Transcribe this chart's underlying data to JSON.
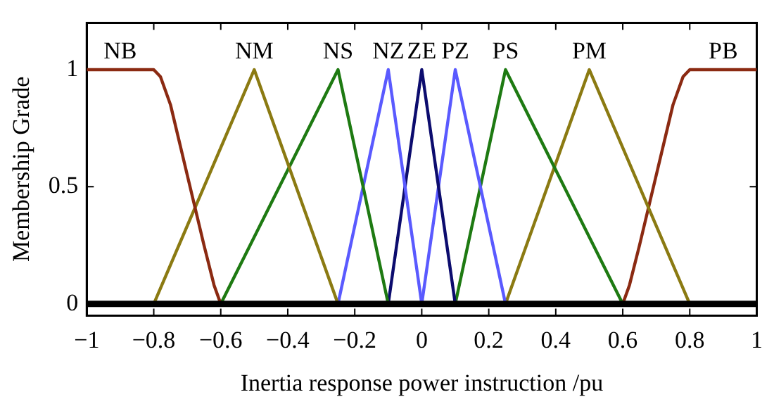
{
  "chart_data": {
    "type": "line",
    "xlabel": "Inertia response power instruction /pu",
    "ylabel": "Membership Grade",
    "xlim": [
      -1,
      1
    ],
    "ylim": [
      -0.05,
      1.2
    ],
    "xticks": [
      {
        "value": -1,
        "label": "−1"
      },
      {
        "value": -0.8,
        "label": "−0.8"
      },
      {
        "value": -0.6,
        "label": "−0.6"
      },
      {
        "value": -0.4,
        "label": "−0.4"
      },
      {
        "value": -0.2,
        "label": "−0.2"
      },
      0,
      0.2,
      0.4,
      0.6,
      0.8,
      1
    ],
    "yticks": [
      0,
      0.5,
      1
    ],
    "grid": false,
    "legend": false,
    "marker": "none",
    "line_style": "solid",
    "ref_lines": [
      {
        "axis": "y",
        "value": 0,
        "color": "#000000"
      }
    ],
    "series": [
      {
        "name": "NB",
        "color": "#8b2a12",
        "x": [
          -1,
          -0.8,
          -0.78,
          -0.75,
          -0.7,
          -0.65,
          -0.62,
          -0.6
        ],
        "values": [
          1,
          1,
          0.97,
          0.85,
          0.55,
          0.25,
          0.08,
          0
        ]
      },
      {
        "name": "NM",
        "color": "#8b7a12",
        "x": [
          -0.8,
          -0.5,
          -0.25
        ],
        "values": [
          0,
          1,
          0
        ]
      },
      {
        "name": "NS",
        "color": "#1e7a12",
        "x": [
          -0.6,
          -0.25,
          -0.1
        ],
        "values": [
          0,
          1,
          0
        ]
      },
      {
        "name": "NZ",
        "color": "#5a5aff",
        "x": [
          -0.25,
          -0.1,
          0
        ],
        "values": [
          0,
          1,
          0
        ]
      },
      {
        "name": "ZE",
        "color": "#0c0c6e",
        "x": [
          -0.1,
          0,
          0.1
        ],
        "values": [
          0,
          1,
          0
        ]
      },
      {
        "name": "PZ",
        "color": "#5a5aff",
        "x": [
          0,
          0.1,
          0.25
        ],
        "values": [
          0,
          1,
          0
        ]
      },
      {
        "name": "PS",
        "color": "#1e7a12",
        "x": [
          0.1,
          0.25,
          0.6
        ],
        "values": [
          0,
          1,
          0
        ]
      },
      {
        "name": "PM",
        "color": "#8b7a12",
        "x": [
          0.25,
          0.5,
          0.8
        ],
        "values": [
          0,
          1,
          0
        ]
      },
      {
        "name": "PB",
        "color": "#8b2a12",
        "x": [
          0.6,
          0.62,
          0.65,
          0.7,
          0.75,
          0.78,
          0.8,
          1
        ],
        "values": [
          0,
          0.08,
          0.25,
          0.55,
          0.85,
          0.97,
          1,
          1
        ]
      }
    ]
  }
}
